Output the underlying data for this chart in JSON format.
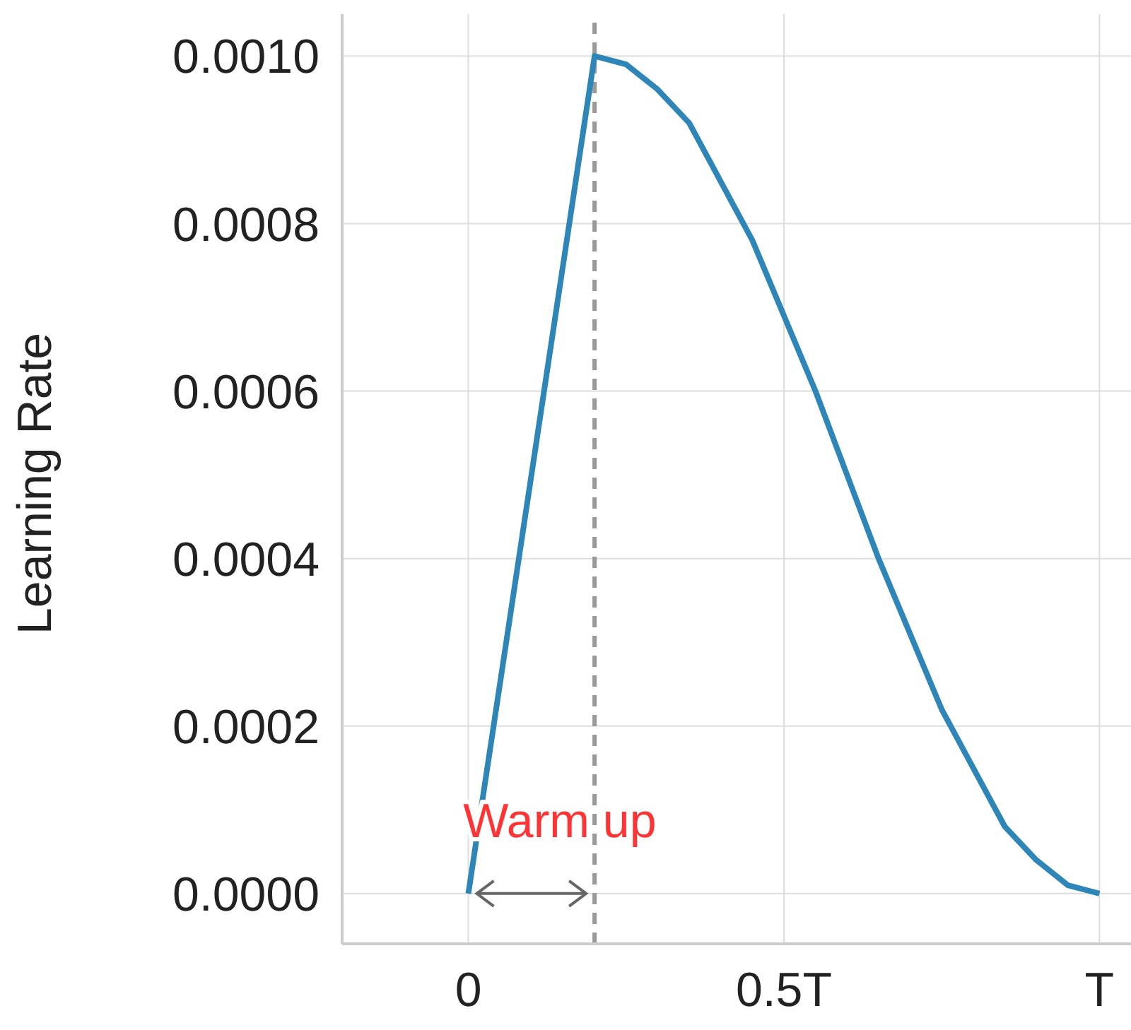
{
  "chart_data": {
    "type": "line",
    "ylabel": "Learning Rate",
    "x": [
      0,
      0.2,
      0.25,
      0.3,
      0.35,
      0.4,
      0.45,
      0.5,
      0.55,
      0.6,
      0.65,
      0.7,
      0.75,
      0.8,
      0.85,
      0.9,
      0.95,
      1.0
    ],
    "series": [
      {
        "color": "#2e86b8",
        "values": [
          0,
          0.001,
          0.00099,
          0.00096,
          0.00092,
          0.00085,
          0.00078,
          0.00069,
          0.0006,
          0.0005,
          0.0004,
          0.00031,
          0.00022,
          0.00015,
          8e-05,
          4e-05,
          1e-05,
          0
        ]
      }
    ],
    "xlim": [
      -0.2,
      1.05
    ],
    "xticks": [
      {
        "value": 0,
        "label": "0"
      },
      {
        "value": 0.5,
        "label": "0.5T"
      },
      {
        "value": 1,
        "label": "T"
      }
    ],
    "ylim": [
      -6e-05,
      0.00105
    ],
    "yticks": [
      {
        "value": 0,
        "label": "0.0000"
      },
      {
        "value": 0.0002,
        "label": "0.0002"
      },
      {
        "value": 0.0004,
        "label": "0.0004"
      },
      {
        "value": 0.0006,
        "label": "0.0006"
      },
      {
        "value": 0.0008,
        "label": "0.0008"
      },
      {
        "value": 0.001,
        "label": "0.0010"
      }
    ],
    "ref_lines": [
      {
        "axis": "x",
        "value": 0.2,
        "color": "#999999",
        "line_style": "dashed"
      }
    ],
    "annotations": [
      "Warm up"
    ],
    "grid": true,
    "marker": "none",
    "line_style": "solid"
  }
}
